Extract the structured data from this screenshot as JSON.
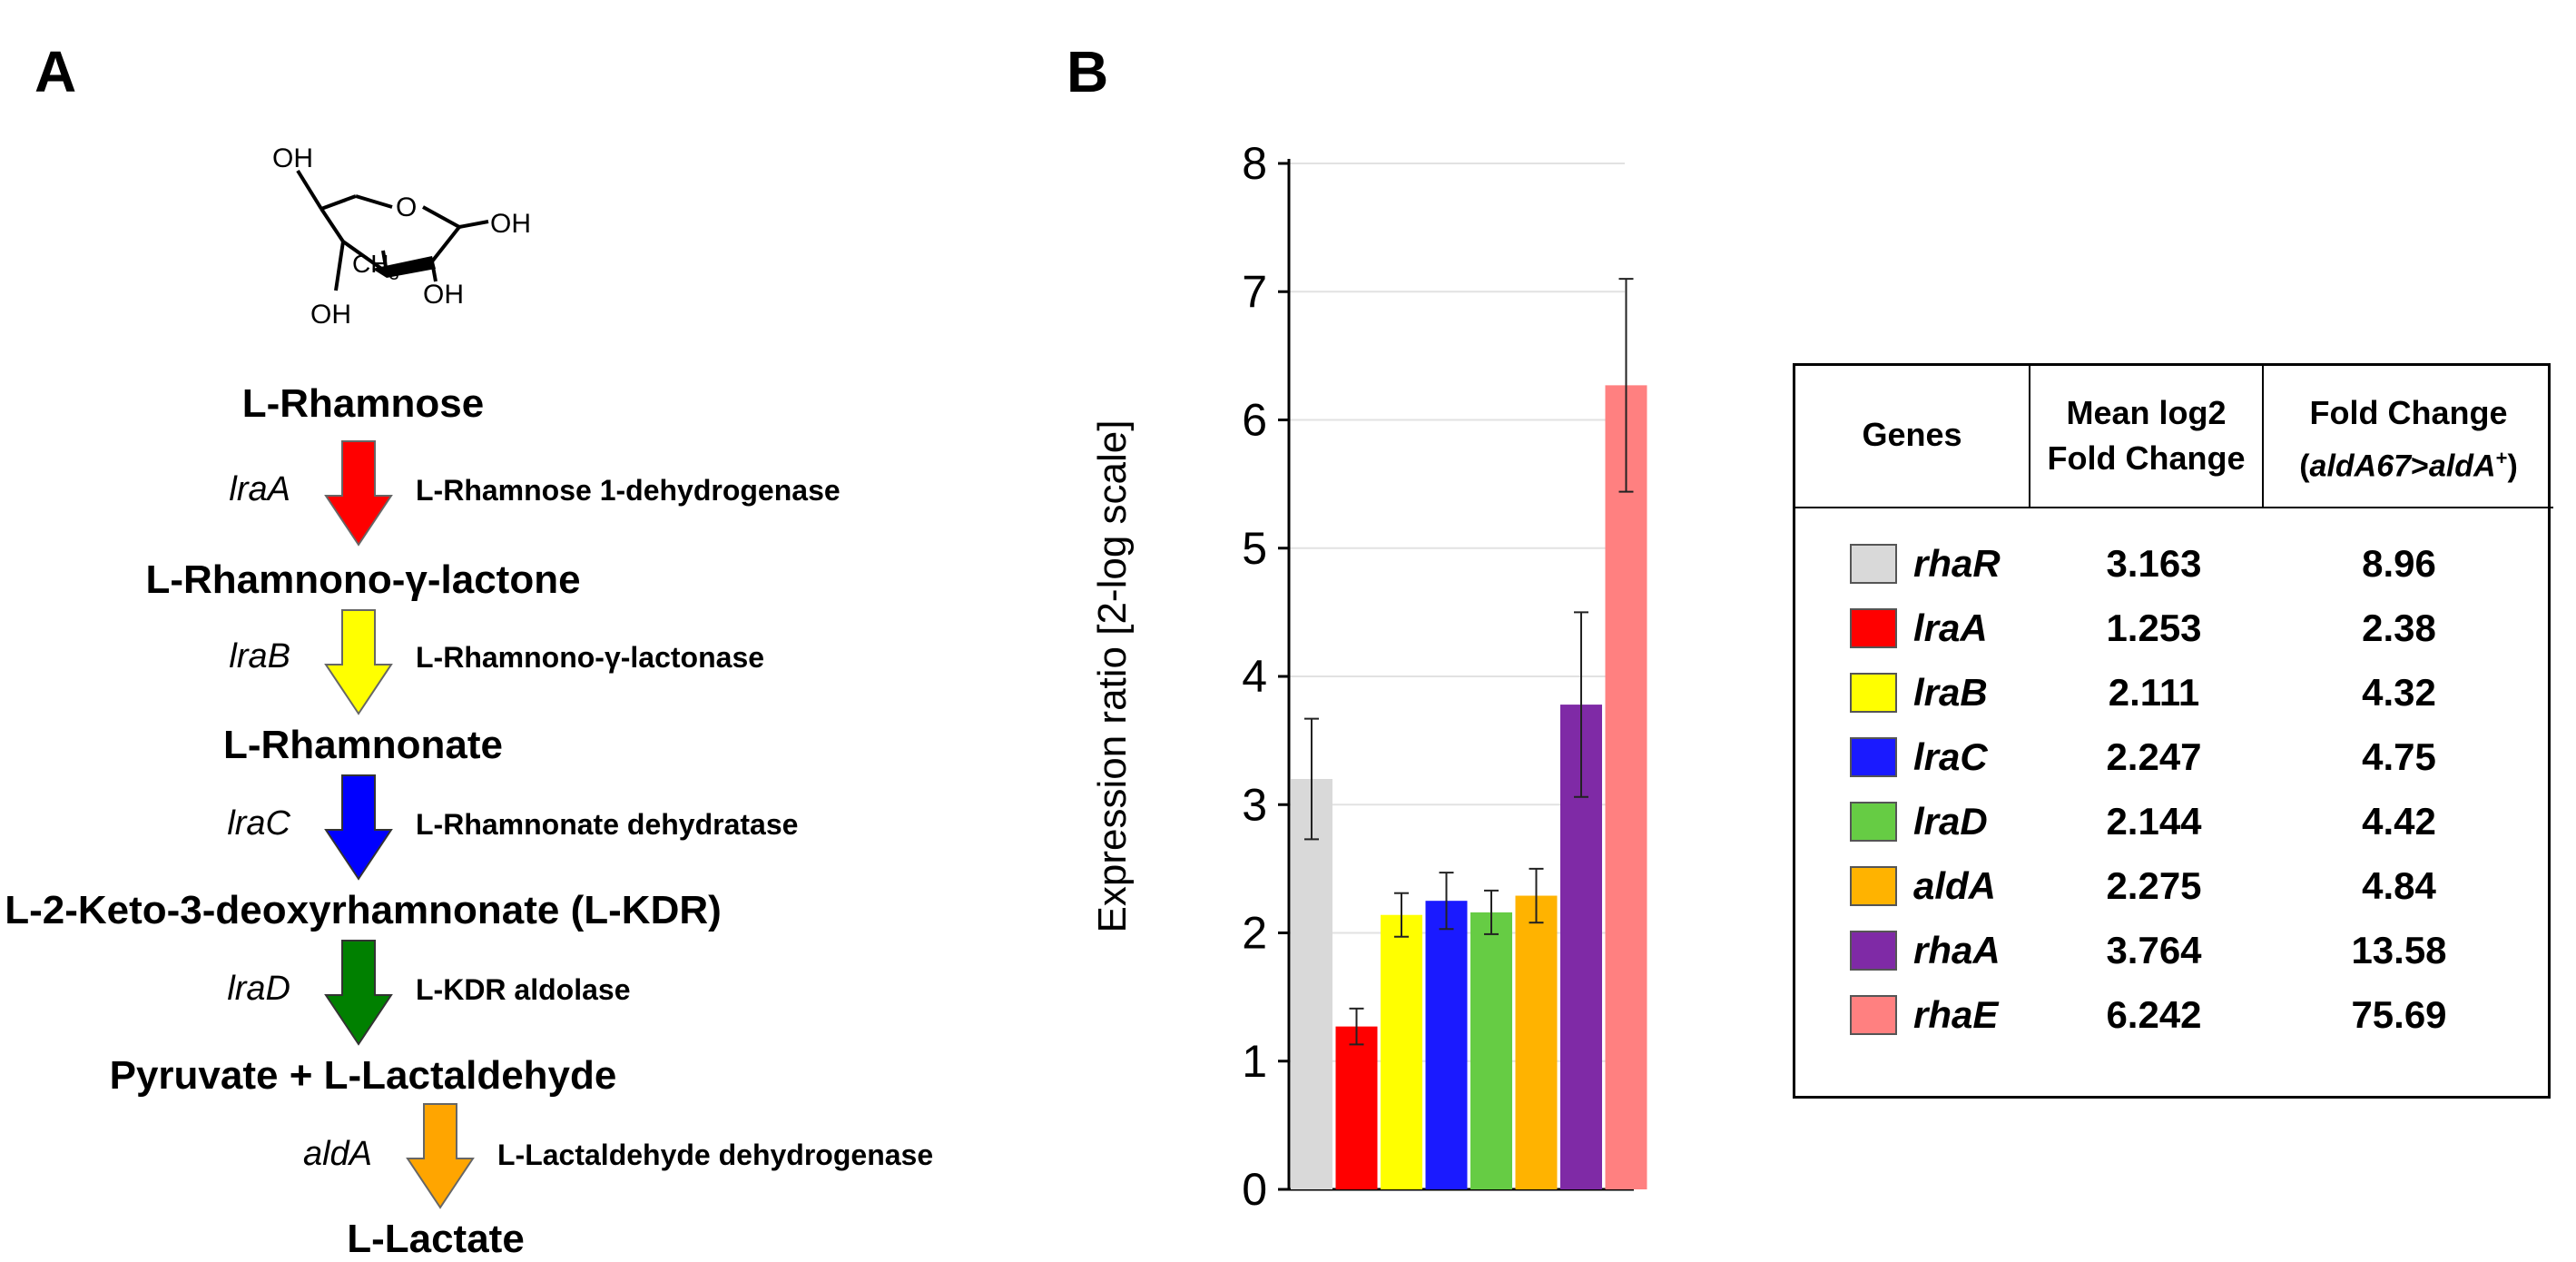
{
  "panels": {
    "a": "A",
    "b": "B"
  },
  "structure": {
    "oh_top": "OH",
    "oh_right": "OH",
    "ring_o": "O",
    "ch3": "CH",
    "ch3_sub": "3",
    "oh_mid": "OH",
    "oh_bottom": "OH"
  },
  "pathway": [
    {
      "compound": "L-Rhamnose",
      "gene": "lraA",
      "enzyme": "L-Rhamnose 1-dehydrogenase",
      "color": "#ff0000"
    },
    {
      "compound": "L-Rhamnono-γ-lactone",
      "gene": "lraB",
      "enzyme": "L-Rhamnono-γ-lactonase",
      "color": "#ffff00"
    },
    {
      "compound": "L-Rhamnonate",
      "gene": "lraC",
      "enzyme": "L-Rhamnonate dehydratase",
      "color": "#0000ff"
    },
    {
      "compound": "L-2-Keto-3-deoxyrhamnonate (L-KDR)",
      "gene": "lraD",
      "enzyme": "L-KDR aldolase",
      "color": "#008000"
    },
    {
      "compound": "Pyruvate + L-Lactaldehyde",
      "gene": "aldA",
      "enzyme": "L-Lactaldehyde dehydrogenase",
      "color": "#ffa500"
    },
    {
      "compound": "L-Lactate"
    }
  ],
  "chart_data": {
    "type": "bar",
    "ylabel": "Expression ratio [2-log scale]",
    "xlabel": "",
    "ylim": [
      0,
      8
    ],
    "yticks": [
      0,
      1,
      2,
      3,
      4,
      5,
      6,
      7,
      8
    ],
    "grid": true,
    "categories": [
      "rhaR",
      "lraA",
      "lraB",
      "lraC",
      "lraD",
      "aldA",
      "rhaA",
      "rhaE"
    ],
    "values": [
      3.2,
      1.27,
      2.14,
      2.25,
      2.16,
      2.29,
      3.78,
      6.27
    ],
    "errors": [
      0.47,
      0.14,
      0.17,
      0.22,
      0.17,
      0.21,
      0.72,
      0.83
    ],
    "colors": [
      "#d9d9d9",
      "#ff0000",
      "#ffff00",
      "#1a1aff",
      "#66cc44",
      "#ffb300",
      "#7f2aa6",
      "#ff8080"
    ]
  },
  "table": {
    "headers": {
      "genes": "Genes",
      "mean_line1": "Mean log2",
      "mean_line2": "Fold Change",
      "fold_line1": "Fold Change",
      "fold_line2_open": "(",
      "fold_line2_a": "aldA67",
      "fold_line2_gt": ">",
      "fold_line2_b": "aldA",
      "fold_line2_sup": "+",
      "fold_line2_close": ")"
    },
    "rows": [
      {
        "gene": "rhaR",
        "mean": "3.163",
        "fold": "8.96",
        "color": "#d9d9d9"
      },
      {
        "gene": "lraA",
        "mean": "1.253",
        "fold": "2.38",
        "color": "#ff0000"
      },
      {
        "gene": "lraB",
        "mean": "2.111",
        "fold": "4.32",
        "color": "#ffff00"
      },
      {
        "gene": "lraC",
        "mean": "2.247",
        "fold": "4.75",
        "color": "#1a1aff"
      },
      {
        "gene": "lraD",
        "mean": "2.144",
        "fold": "4.42",
        "color": "#66cc44"
      },
      {
        "gene": "aldA",
        "mean": "2.275",
        "fold": "4.84",
        "color": "#ffb300"
      },
      {
        "gene": "rhaA",
        "mean": "3.764",
        "fold": "13.58",
        "color": "#7f2aa6"
      },
      {
        "gene": "rhaE",
        "mean": "6.242",
        "fold": "75.69",
        "color": "#ff8080"
      }
    ]
  }
}
